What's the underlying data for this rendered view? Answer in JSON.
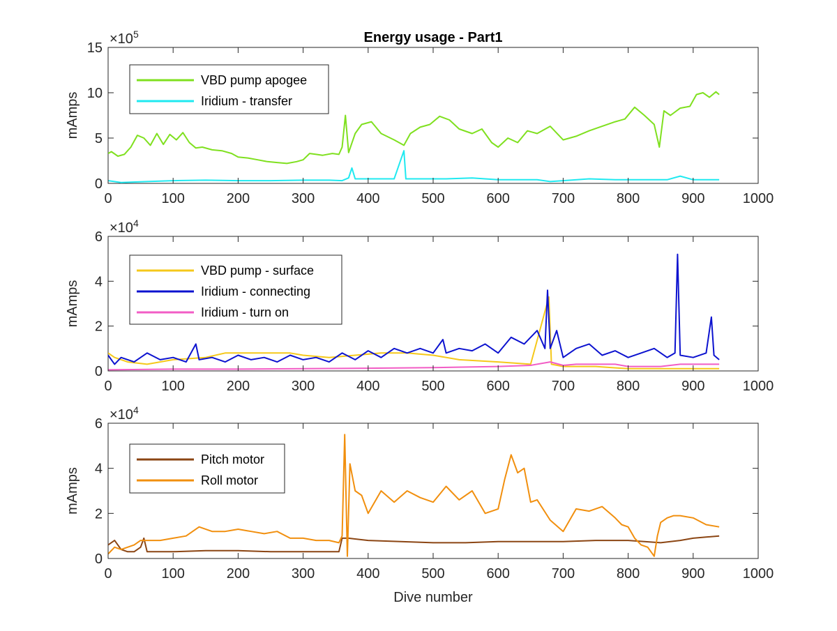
{
  "chart_data": [
    {
      "type": "line",
      "title": "Energy usage - Part1",
      "xlabel": "",
      "ylabel": "mAmps",
      "exponent_base": "×10",
      "exponent_power": "5",
      "xlim": [
        0,
        1000
      ],
      "ylim": [
        0,
        15
      ],
      "xticks": [
        "0",
        "100",
        "200",
        "300",
        "400",
        "500",
        "600",
        "700",
        "800",
        "900",
        "1000"
      ],
      "yticks": [
        "0",
        "5",
        "10",
        "15"
      ],
      "legend_position": "top-left",
      "series": [
        {
          "name": "VBD pump apogee",
          "color": "#7FE01F",
          "x": [
            0,
            5,
            15,
            25,
            35,
            45,
            55,
            65,
            75,
            85,
            95,
            105,
            115,
            125,
            135,
            145,
            160,
            175,
            190,
            200,
            215,
            230,
            245,
            260,
            275,
            290,
            300,
            310,
            320,
            330,
            345,
            355,
            360,
            365,
            370,
            380,
            390,
            405,
            420,
            440,
            455,
            465,
            480,
            495,
            510,
            525,
            540,
            560,
            575,
            590,
            600,
            615,
            630,
            645,
            660,
            680,
            700,
            720,
            740,
            760,
            780,
            795,
            810,
            825,
            840,
            848,
            855,
            865,
            880,
            895,
            905,
            915,
            925,
            935,
            940
          ],
          "y": [
            3.3,
            3.5,
            3.0,
            3.2,
            4.0,
            5.3,
            5.0,
            4.2,
            5.5,
            4.3,
            5.4,
            4.8,
            5.6,
            4.5,
            3.9,
            4.0,
            3.7,
            3.6,
            3.3,
            2.9,
            2.8,
            2.6,
            2.4,
            2.3,
            2.2,
            2.4,
            2.6,
            3.3,
            3.2,
            3.1,
            3.3,
            3.2,
            4.0,
            7.5,
            3.4,
            5.5,
            6.5,
            6.8,
            5.5,
            4.8,
            4.2,
            5.5,
            6.2,
            6.5,
            7.4,
            7.0,
            6.0,
            5.5,
            6.0,
            4.5,
            4.0,
            5.0,
            4.5,
            5.8,
            5.5,
            6.3,
            4.8,
            5.2,
            5.8,
            6.3,
            6.8,
            7.1,
            8.4,
            7.5,
            6.5,
            4.0,
            8.0,
            7.5,
            8.3,
            8.5,
            9.8,
            10.0,
            9.5,
            10.1,
            9.8
          ]
        },
        {
          "name": "Iridium - transfer",
          "color": "#1FE9F0",
          "x": [
            0,
            20,
            60,
            100,
            150,
            200,
            250,
            300,
            340,
            360,
            370,
            375,
            380,
            400,
            440,
            455,
            458,
            462,
            480,
            520,
            560,
            600,
            640,
            660,
            680,
            700,
            740,
            780,
            820,
            860,
            880,
            900,
            940
          ],
          "y": [
            0.3,
            0.1,
            0.2,
            0.3,
            0.35,
            0.3,
            0.3,
            0.35,
            0.35,
            0.3,
            0.6,
            1.7,
            0.5,
            0.5,
            0.5,
            3.6,
            0.5,
            0.5,
            0.5,
            0.5,
            0.6,
            0.4,
            0.4,
            0.4,
            0.2,
            0.3,
            0.5,
            0.4,
            0.4,
            0.4,
            0.8,
            0.4,
            0.4
          ]
        }
      ]
    },
    {
      "type": "line",
      "title": "",
      "xlabel": "",
      "ylabel": "mAmps",
      "exponent_base": "×10",
      "exponent_power": "4",
      "xlim": [
        0,
        1000
      ],
      "ylim": [
        0,
        6
      ],
      "xticks": [
        "0",
        "100",
        "200",
        "300",
        "400",
        "500",
        "600",
        "700",
        "800",
        "900",
        "1000"
      ],
      "yticks": [
        "0",
        "2",
        "4",
        "6"
      ],
      "legend_position": "top-left",
      "series": [
        {
          "name": "VBD pump - surface",
          "color": "#F5C81A",
          "x": [
            0,
            10,
            30,
            60,
            100,
            150,
            180,
            200,
            240,
            280,
            300,
            340,
            380,
            420,
            460,
            500,
            540,
            600,
            650,
            678,
            682,
            700,
            750,
            800,
            850,
            900,
            940
          ],
          "y": [
            0.8,
            0.6,
            0.4,
            0.3,
            0.5,
            0.6,
            0.8,
            0.8,
            0.8,
            0.8,
            0.7,
            0.6,
            0.7,
            0.8,
            0.8,
            0.7,
            0.5,
            0.4,
            0.3,
            3.3,
            0.3,
            0.2,
            0.2,
            0.1,
            0.1,
            0.1,
            0.1
          ]
        },
        {
          "name": "Iridium - connecting",
          "color": "#0C12CF",
          "x": [
            0,
            10,
            20,
            40,
            60,
            80,
            100,
            120,
            135,
            140,
            160,
            180,
            200,
            220,
            240,
            260,
            280,
            300,
            320,
            340,
            360,
            380,
            400,
            420,
            440,
            460,
            480,
            500,
            515,
            520,
            540,
            560,
            580,
            600,
            620,
            640,
            660,
            672,
            676,
            680,
            690,
            700,
            720,
            740,
            760,
            780,
            800,
            820,
            840,
            860,
            872,
            876,
            880,
            900,
            920,
            928,
            932,
            940
          ],
          "y": [
            0.7,
            0.3,
            0.6,
            0.4,
            0.8,
            0.5,
            0.6,
            0.4,
            1.2,
            0.5,
            0.6,
            0.4,
            0.7,
            0.5,
            0.6,
            0.4,
            0.7,
            0.5,
            0.6,
            0.4,
            0.8,
            0.5,
            0.9,
            0.6,
            1.0,
            0.8,
            1.0,
            0.8,
            1.4,
            0.8,
            1.0,
            0.9,
            1.2,
            0.8,
            1.5,
            1.2,
            1.8,
            1.0,
            3.6,
            1.0,
            1.8,
            0.6,
            1.0,
            1.2,
            0.7,
            0.9,
            0.6,
            0.8,
            1.0,
            0.6,
            0.8,
            5.2,
            0.7,
            0.6,
            0.8,
            2.4,
            0.7,
            0.5
          ]
        },
        {
          "name": "Iridium - turn on",
          "color": "#F25CC5",
          "x": [
            0,
            100,
            200,
            300,
            400,
            500,
            600,
            650,
            680,
            700,
            720,
            780,
            800,
            850,
            880,
            900,
            940
          ],
          "y": [
            0.05,
            0.08,
            0.08,
            0.1,
            0.12,
            0.15,
            0.2,
            0.25,
            0.4,
            0.25,
            0.3,
            0.3,
            0.2,
            0.2,
            0.3,
            0.3,
            0.3
          ]
        }
      ]
    },
    {
      "type": "line",
      "title": "",
      "xlabel": "Dive number",
      "ylabel": "mAmps",
      "exponent_base": "×10",
      "exponent_power": "4",
      "xlim": [
        0,
        1000
      ],
      "ylim": [
        0,
        6
      ],
      "xticks": [
        "0",
        "100",
        "200",
        "300",
        "400",
        "500",
        "600",
        "700",
        "800",
        "900",
        "1000"
      ],
      "yticks": [
        "0",
        "2",
        "4",
        "6"
      ],
      "legend_position": "top-left",
      "series": [
        {
          "name": "Pitch motor",
          "color": "#8B4513",
          "x": [
            0,
            10,
            20,
            30,
            40,
            50,
            55,
            60,
            80,
            100,
            150,
            200,
            250,
            300,
            340,
            355,
            360,
            370,
            400,
            450,
            500,
            550,
            600,
            650,
            700,
            750,
            800,
            850,
            880,
            900,
            920,
            940
          ],
          "y": [
            0.6,
            0.8,
            0.4,
            0.3,
            0.3,
            0.5,
            0.9,
            0.3,
            0.3,
            0.3,
            0.35,
            0.35,
            0.3,
            0.3,
            0.3,
            0.3,
            0.9,
            0.9,
            0.8,
            0.75,
            0.7,
            0.7,
            0.75,
            0.75,
            0.75,
            0.8,
            0.8,
            0.7,
            0.8,
            0.9,
            0.95,
            1.0
          ]
        },
        {
          "name": "Roll motor",
          "color": "#F18F0E",
          "x": [
            0,
            10,
            20,
            40,
            50,
            60,
            80,
            100,
            120,
            140,
            160,
            180,
            200,
            220,
            240,
            260,
            280,
            300,
            320,
            340,
            355,
            360,
            364,
            368,
            372,
            380,
            390,
            400,
            420,
            440,
            460,
            480,
            500,
            520,
            540,
            560,
            580,
            600,
            610,
            620,
            630,
            640,
            650,
            660,
            680,
            700,
            720,
            740,
            760,
            780,
            790,
            800,
            810,
            820,
            830,
            840,
            845,
            850,
            860,
            870,
            880,
            900,
            920,
            940
          ],
          "y": [
            0.2,
            0.5,
            0.4,
            0.6,
            0.8,
            0.8,
            0.8,
            0.9,
            1.0,
            1.4,
            1.2,
            1.2,
            1.3,
            1.2,
            1.1,
            1.2,
            0.9,
            0.9,
            0.8,
            0.8,
            0.7,
            1.0,
            5.5,
            0.1,
            4.2,
            3.0,
            2.8,
            2.0,
            3.0,
            2.5,
            3.0,
            2.7,
            2.5,
            3.2,
            2.6,
            3.0,
            2.0,
            2.2,
            3.5,
            4.6,
            3.8,
            4.0,
            2.5,
            2.6,
            1.7,
            1.2,
            2.2,
            2.1,
            2.3,
            1.8,
            1.5,
            1.4,
            0.9,
            0.6,
            0.5,
            0.1,
            1.0,
            1.6,
            1.8,
            1.9,
            1.9,
            1.8,
            1.5,
            1.4
          ]
        }
      ]
    }
  ]
}
